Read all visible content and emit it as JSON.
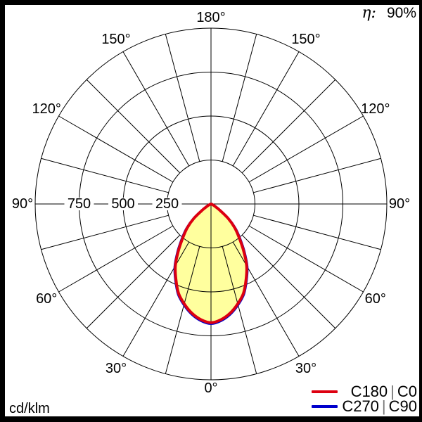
{
  "header": {
    "eta_symbol": "η:",
    "eta_value": "90%"
  },
  "footer": {
    "unit": "cd/klm"
  },
  "legend": {
    "items": [
      {
        "left": "C180",
        "sep": "|",
        "right": "C0"
      },
      {
        "left": "C270",
        "sep": "|",
        "right": "C90"
      }
    ]
  },
  "colors": {
    "c0_curve": "#dd0010",
    "c90_curve": "#0000cc",
    "lobe_fill": "#ffff9e",
    "grid": "#000000",
    "separator": "#777777",
    "background": "#ffffff",
    "frame": "#000000"
  },
  "chart_data": {
    "type": "polar",
    "subtype": "luminous-intensity-distribution",
    "units": "cd/klm",
    "efficiency": "90%",
    "rmax": 1000,
    "radial_ticks": [
      250,
      500,
      750,
      1000
    ],
    "radial_tick_labels": [
      "250",
      "500",
      "750"
    ],
    "spoke_step_deg": 15,
    "angle_labels": [
      {
        "deg": 0,
        "label": "0°"
      },
      {
        "deg": 30,
        "label": "30°"
      },
      {
        "deg": 60,
        "label": "60°"
      },
      {
        "deg": 90,
        "label": "90°"
      },
      {
        "deg": 120,
        "label": "120°"
      },
      {
        "deg": 150,
        "label": "150°"
      },
      {
        "deg": 180,
        "label": "180°"
      }
    ],
    "gamma_deg": [
      0,
      5,
      10,
      15,
      20,
      25,
      30,
      35,
      40,
      45,
      50,
      55,
      60,
      65,
      70,
      75,
      80,
      85,
      90
    ],
    "series": [
      {
        "name": "C180 | C0",
        "color": "#dd0010",
        "stroke_width": 4,
        "values": [
          675,
          660,
          630,
          588,
          540,
          472,
          405,
          322,
          248,
          190,
          126,
          58,
          25,
          12,
          6,
          3,
          1,
          0,
          0
        ]
      },
      {
        "name": "C270 | C90",
        "color": "#0000cc",
        "stroke_width": 3.5,
        "values": [
          681,
          666,
          636,
          594,
          546,
          478,
          412,
          330,
          256,
          196,
          130,
          61,
          27,
          13,
          6,
          3,
          1,
          0,
          0
        ]
      }
    ],
    "legend_position": "bottom-right",
    "grid": true
  }
}
